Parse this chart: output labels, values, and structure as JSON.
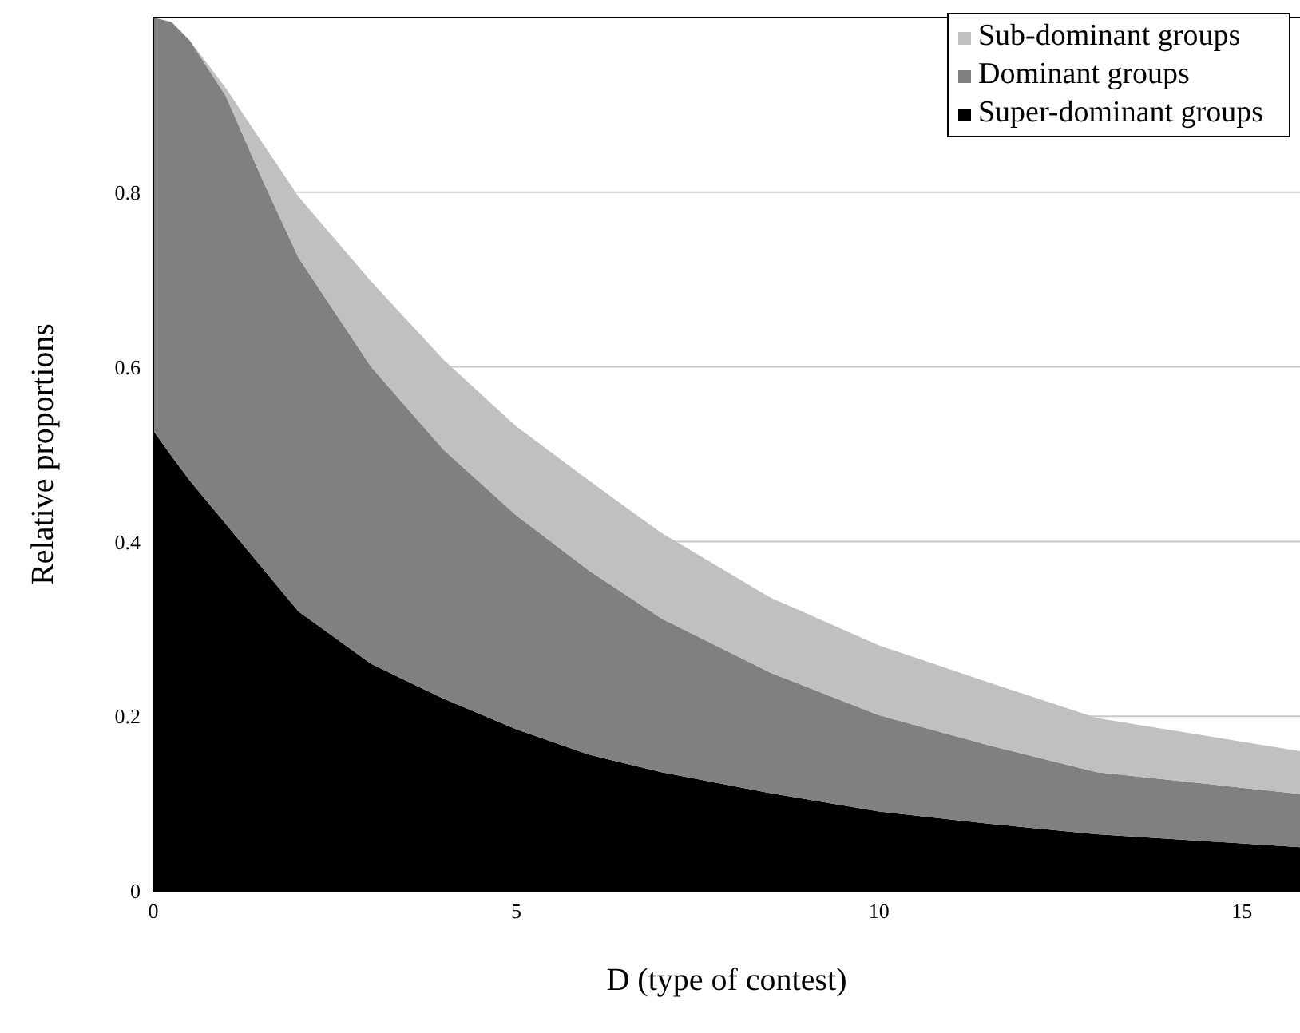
{
  "chart_data": {
    "type": "area",
    "stacked": true,
    "xlabel": "D (type of contest)",
    "ylabel": "Relative proportions",
    "x": [
      0,
      0.25,
      0.5,
      1,
      1.5,
      2,
      3,
      4,
      5,
      6,
      7,
      8.5,
      10,
      11.5,
      13,
      15.8
    ],
    "series": [
      {
        "name": "Super-dominant groups",
        "color": "#000000",
        "values": [
          0.527,
          0.498,
          0.47,
          0.42,
          0.37,
          0.32,
          0.26,
          0.22,
          0.185,
          0.156,
          0.136,
          0.112,
          0.091,
          0.077,
          0.065,
          0.05
        ]
      },
      {
        "name": "Dominant groups",
        "color": "#808080",
        "values": [
          0.473,
          0.497,
          0.504,
          0.49,
          0.445,
          0.405,
          0.34,
          0.285,
          0.245,
          0.211,
          0.176,
          0.138,
          0.11,
          0.09,
          0.071,
          0.061
        ]
      },
      {
        "name": "Sub-dominant groups",
        "color": "#c0c0c0",
        "values": [
          0,
          0,
          0,
          0.009,
          0.042,
          0.07,
          0.098,
          0.103,
          0.102,
          0.103,
          0.098,
          0.086,
          0.08,
          0.072,
          0.062,
          0.049
        ]
      }
    ],
    "xlim": [
      0,
      15.8
    ],
    "xticks": [
      0,
      5,
      10,
      15
    ],
    "ylim": [
      0,
      1
    ],
    "yticks": [
      0,
      0.2,
      0.4,
      0.6,
      0.8
    ],
    "grid": "y",
    "legend": "top right"
  }
}
